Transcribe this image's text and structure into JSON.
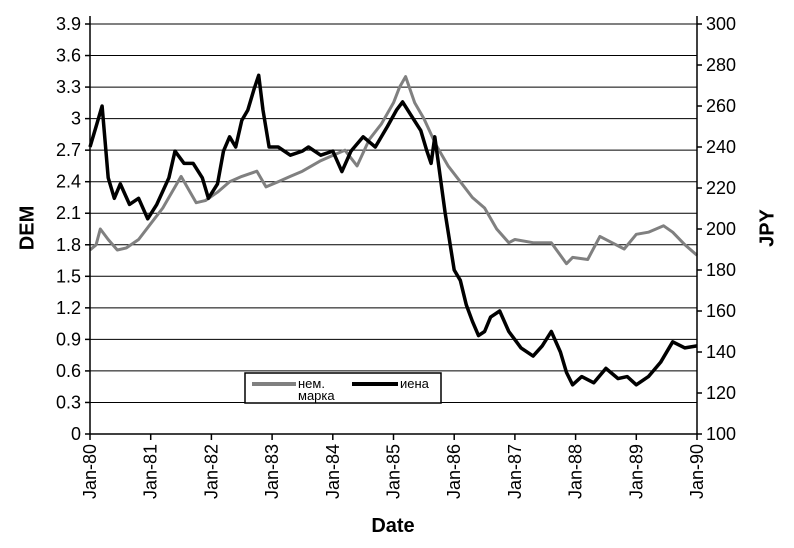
{
  "chart_data": {
    "type": "line",
    "xlabel": "Date",
    "ylabel_left": "DEM",
    "ylabel_right": "JPY",
    "x_ticks": [
      "Jan-80",
      "Jan-81",
      "Jan-82",
      "Jan-83",
      "Jan-84",
      "Jan-85",
      "Jan-86",
      "Jan-87",
      "Jan-88",
      "Jan-89",
      "Jan-90"
    ],
    "y_left_ticks": [
      "0",
      "0.3",
      "0.6",
      "0.9",
      "1.2",
      "1.5",
      "1.8",
      "2.1",
      "2.4",
      "2.7",
      "3",
      "3.3",
      "3.6",
      "3.9"
    ],
    "y_right_ticks": [
      "100",
      "120",
      "140",
      "160",
      "180",
      "200",
      "220",
      "240",
      "260",
      "280",
      "300"
    ],
    "ylim_left": [
      0,
      3.9
    ],
    "ylim_right": [
      100,
      300
    ],
    "grid": true,
    "legend_position": "bottom-center inside plot",
    "series": [
      {
        "name": "нем. марка",
        "axis": "left",
        "color": "#808080",
        "x": [
          1980.0,
          1980.1,
          1980.17,
          1980.3,
          1980.45,
          1980.6,
          1980.8,
          1981.0,
          1981.2,
          1981.35,
          1981.5,
          1981.6,
          1981.75,
          1981.9,
          1982.1,
          1982.3,
          1982.5,
          1982.75,
          1982.9,
          1983.1,
          1983.3,
          1983.5,
          1983.8,
          1984.0,
          1984.2,
          1984.4,
          1984.6,
          1984.8,
          1985.0,
          1985.1,
          1985.2,
          1985.35,
          1985.5,
          1985.7,
          1985.9,
          1986.1,
          1986.3,
          1986.5,
          1986.7,
          1986.9,
          1987.0,
          1987.3,
          1987.6,
          1987.85,
          1987.95,
          1988.2,
          1988.4,
          1988.6,
          1988.8,
          1989.0,
          1989.2,
          1989.45,
          1989.6,
          1989.8,
          1990.0
        ],
        "values": [
          1.75,
          1.8,
          1.95,
          1.85,
          1.75,
          1.77,
          1.85,
          2.0,
          2.15,
          2.3,
          2.45,
          2.35,
          2.2,
          2.22,
          2.3,
          2.4,
          2.45,
          2.5,
          2.35,
          2.4,
          2.45,
          2.5,
          2.6,
          2.65,
          2.7,
          2.55,
          2.8,
          2.95,
          3.15,
          3.3,
          3.4,
          3.15,
          3.0,
          2.75,
          2.55,
          2.4,
          2.25,
          2.15,
          1.95,
          1.82,
          1.85,
          1.82,
          1.82,
          1.62,
          1.68,
          1.66,
          1.88,
          1.82,
          1.76,
          1.9,
          1.92,
          1.98,
          1.92,
          1.8,
          1.7
        ]
      },
      {
        "name": "иена",
        "axis": "right",
        "color": "#000000",
        "x": [
          1980.0,
          1980.1,
          1980.2,
          1980.3,
          1980.4,
          1980.5,
          1980.65,
          1980.8,
          1980.95,
          1981.1,
          1981.3,
          1981.4,
          1981.55,
          1981.7,
          1981.85,
          1981.95,
          1982.1,
          1982.2,
          1982.3,
          1982.4,
          1982.5,
          1982.6,
          1982.7,
          1982.78,
          1982.85,
          1982.95,
          1983.1,
          1983.3,
          1983.5,
          1983.6,
          1983.8,
          1984.0,
          1984.15,
          1984.3,
          1984.5,
          1984.7,
          1984.9,
          1985.05,
          1985.15,
          1985.3,
          1985.45,
          1985.55,
          1985.62,
          1985.68,
          1985.85,
          1986.0,
          1986.1,
          1986.2,
          1986.3,
          1986.4,
          1986.5,
          1986.6,
          1986.75,
          1986.9,
          1987.0,
          1987.1,
          1987.3,
          1987.45,
          1987.6,
          1987.75,
          1987.85,
          1987.95,
          1988.1,
          1988.3,
          1988.5,
          1988.7,
          1988.85,
          1989.0,
          1989.2,
          1989.4,
          1989.6,
          1989.8,
          1990.0
        ],
        "values": [
          240,
          250,
          260,
          225,
          215,
          222,
          212,
          215,
          205,
          212,
          225,
          238,
          232,
          232,
          225,
          215,
          222,
          238,
          245,
          240,
          253,
          258,
          268,
          275,
          258,
          240,
          240,
          236,
          238,
          240,
          236,
          238,
          228,
          238,
          245,
          240,
          250,
          258,
          262,
          255,
          248,
          238,
          232,
          245,
          208,
          180,
          175,
          163,
          155,
          148,
          150,
          157,
          160,
          150,
          146,
          142,
          138,
          143,
          150,
          140,
          130,
          124,
          128,
          125,
          132,
          127,
          128,
          124,
          128,
          135,
          145,
          142,
          143
        ]
      }
    ]
  },
  "legend": {
    "item1_line1": "нем.",
    "item1_line2": "марка",
    "item2": "иена"
  }
}
